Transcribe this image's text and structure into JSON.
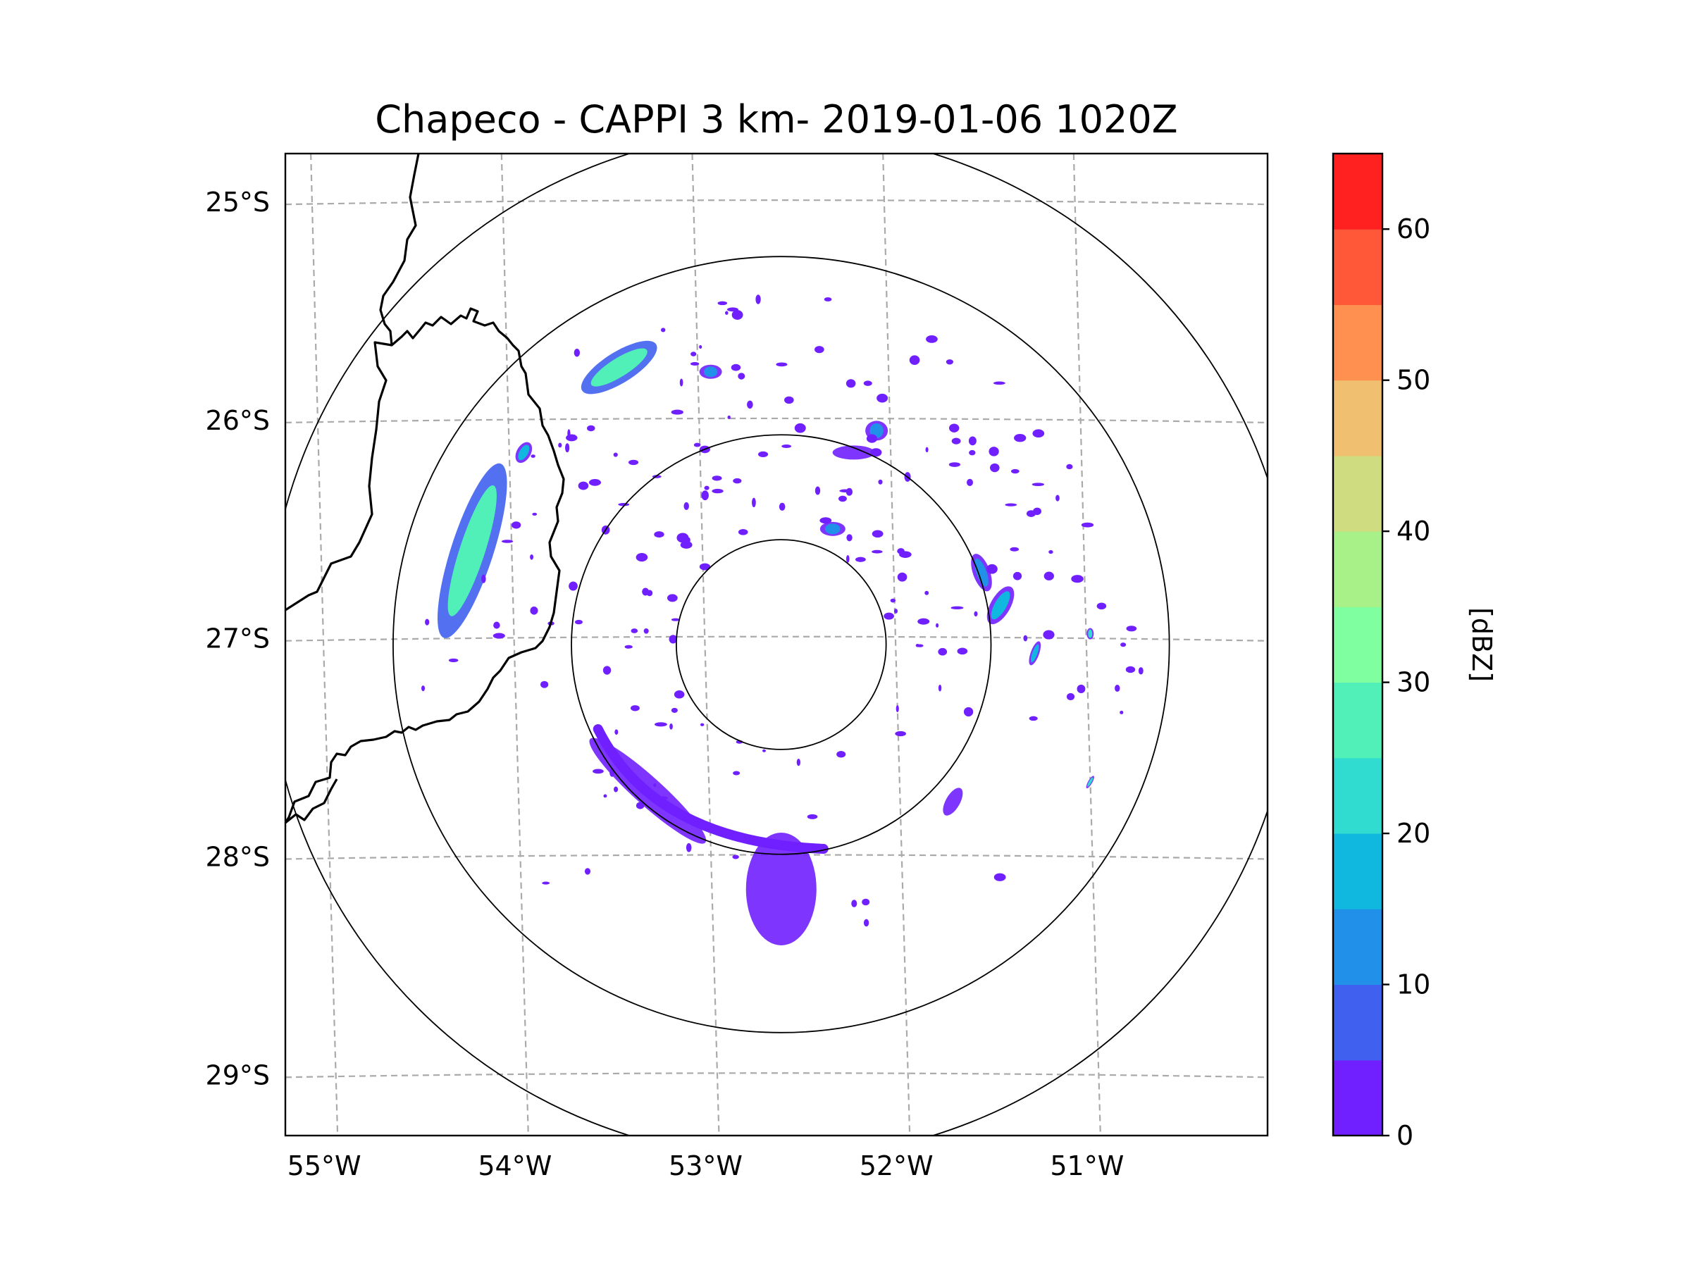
{
  "figure": {
    "title": "Chapeco - CAPPI 3 km- 2019-01-06 1020Z",
    "lon_ticks": [
      "55°W",
      "54°W",
      "53°W",
      "52°W",
      "51°W"
    ],
    "lat_ticks": [
      "25°S",
      "26°S",
      "27°S",
      "28°S",
      "29°S"
    ]
  },
  "colorbar": {
    "label": "[dBZ]",
    "tick_labels": [
      "0",
      "10",
      "20",
      "30",
      "40",
      "50",
      "60"
    ],
    "levels": [
      0,
      5,
      10,
      15,
      20,
      25,
      30,
      35,
      40,
      45,
      50,
      55,
      60,
      65
    ],
    "colors": [
      "#7020ff",
      "#4060f0",
      "#2090e8",
      "#10b8e0",
      "#30dcd0",
      "#50f0b8",
      "#80ffa0",
      "#a8f088",
      "#d0dc80",
      "#f0c070",
      "#ff9050",
      "#ff5838",
      "#ff2020"
    ]
  },
  "chart_data": {
    "type": "heatmap",
    "title": "Chapeco - CAPPI 3 km- 2019-01-06 1020Z",
    "xlabel": "",
    "ylabel": "",
    "xlim": [
      -55.2,
      -50.05
    ],
    "ylim": [
      -29.28,
      -24.78
    ],
    "x_ticks": [
      -55,
      -54,
      -53,
      -52,
      -51
    ],
    "y_ticks": [
      -25,
      -26,
      -27,
      -28,
      -29
    ],
    "colorbar_label": "[dBZ]",
    "colorbar_range": [
      0,
      65
    ],
    "radar_center": [
      -52.6,
      -27.03
    ],
    "range_rings_deg": [
      0.5,
      1.0,
      1.85,
      2.45
    ],
    "echoes": [
      {
        "name": "western-band",
        "lon": -54.22,
        "lat": -26.6,
        "dbz": 25
      },
      {
        "name": "north-cell",
        "lon": -53.45,
        "lat": -25.76,
        "dbz": 25
      },
      {
        "name": "northwest-cell",
        "lon": -53.95,
        "lat": -26.15,
        "dbz": 15
      },
      {
        "name": "north-small-cell",
        "lon": -52.97,
        "lat": -25.78,
        "dbz": 10
      },
      {
        "name": "northeast-cell-1",
        "lon": -52.1,
        "lat": -26.05,
        "dbz": 10
      },
      {
        "name": "northeast-cell-2",
        "lon": -52.22,
        "lat": -26.15,
        "dbz": 5
      },
      {
        "name": "east-cell-1",
        "lon": -51.55,
        "lat": -26.7,
        "dbz": 10
      },
      {
        "name": "east-cell-2",
        "lon": -51.45,
        "lat": -26.85,
        "dbz": 15
      },
      {
        "name": "east-cell-3",
        "lon": -51.27,
        "lat": -27.07,
        "dbz": 15
      },
      {
        "name": "far-east-echo-1",
        "lon": -50.98,
        "lat": -26.98,
        "dbz": 20
      },
      {
        "name": "far-east-echo-2",
        "lon": -50.98,
        "lat": -27.66,
        "dbz": 20
      },
      {
        "name": "southwest-arc",
        "lon": -53.3,
        "lat": -27.7,
        "dbz": 3
      },
      {
        "name": "south-plume",
        "lon": -52.6,
        "lat": -28.15,
        "dbz": 3
      },
      {
        "name": "southeast-cell",
        "lon": -51.7,
        "lat": -27.75,
        "dbz": 3
      },
      {
        "name": "central-cell",
        "lon": -52.33,
        "lat": -26.5,
        "dbz": 10
      }
    ]
  }
}
